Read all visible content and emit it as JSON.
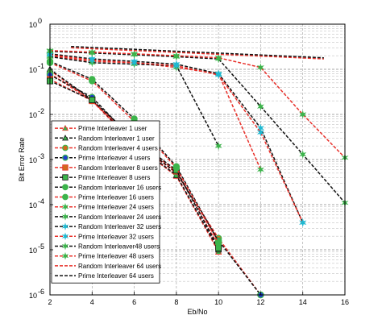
{
  "chart_data": {
    "type": "line",
    "xlabel": "Eb/No",
    "ylabel": "Bit Error Rate",
    "xlim": [
      2,
      16
    ],
    "ylim": [
      1e-06,
      1
    ],
    "yscale": "log",
    "grid": true,
    "legend_position": "lower-left",
    "x_ticks": [
      "2",
      "4",
      "6",
      "8",
      "10",
      "12",
      "14",
      "16"
    ],
    "y_ticks": [
      {
        "base": "10",
        "exp": "0"
      },
      {
        "base": "10",
        "exp": "-1"
      },
      {
        "base": "10",
        "exp": "-2"
      },
      {
        "base": "10",
        "exp": "-3"
      },
      {
        "base": "10",
        "exp": "-4"
      },
      {
        "base": "10",
        "exp": "-5"
      },
      {
        "base": "10",
        "exp": "-6"
      }
    ],
    "series": [
      {
        "name": "Prime Interleaver 1 user",
        "color": "#e8302a",
        "dash": "dashed",
        "marker": "triangle",
        "marker_color": "#3cb44b",
        "x": [
          2,
          4,
          6,
          8,
          10
        ],
        "y": [
          0.095,
          0.02,
          0.0022,
          0.00043,
          9e-06
        ]
      },
      {
        "name": "Random Interleaver 1 user",
        "color": "#111111",
        "dash": "dashed",
        "marker": "triangle",
        "marker_color": "#3cb44b",
        "x": [
          2,
          4,
          6,
          8,
          10
        ],
        "y": [
          0.1,
          0.021,
          0.0023,
          0.00045,
          1e-05
        ]
      },
      {
        "name": "Random Interleaver 4 users",
        "color": "#e8302a",
        "dash": "dashed",
        "marker": "circle",
        "marker_color": "#d2691e",
        "x": [
          2,
          4,
          6,
          8,
          10,
          12
        ],
        "y": [
          0.08,
          0.02,
          0.0025,
          0.0005,
          1.8e-05,
          1e-06
        ]
      },
      {
        "name": "Prime Interleaver 4 users",
        "color": "#111111",
        "dash": "dashed",
        "marker": "circle",
        "marker_color": "#1f3fcf",
        "x": [
          2,
          4,
          6,
          8,
          10,
          12
        ],
        "y": [
          0.075,
          0.024,
          0.0026,
          0.00052,
          1.6e-05,
          1e-06
        ]
      },
      {
        "name": "Random Interleaver  8 users",
        "color": "#e8302a",
        "dash": "dashed",
        "marker": "square",
        "marker_color": "#d2691e",
        "x": [
          2,
          4,
          6,
          8,
          10
        ],
        "y": [
          0.06,
          0.02,
          0.0028,
          0.00055,
          1.2e-05
        ]
      },
      {
        "name": "Prime Interleaver 8 users",
        "color": "#111111",
        "dash": "dashed",
        "marker": "square",
        "marker_color": "#3cb44b",
        "x": [
          2,
          4,
          6,
          8,
          10
        ],
        "y": [
          0.055,
          0.021,
          0.0029,
          0.00058,
          1.1e-05
        ]
      },
      {
        "name": "Random Interleaver 16 users",
        "color": "#111111",
        "dash": "dashed",
        "marker": "circle",
        "marker_color": "#3cb44b",
        "x": [
          2,
          4,
          6,
          8,
          10
        ],
        "y": [
          0.15,
          0.06,
          0.008,
          0.0007,
          1.5e-05
        ]
      },
      {
        "name": "Prime Interleaver 16 users",
        "color": "#e8302a",
        "dash": "dashed",
        "marker": "circle",
        "marker_color": "#3cb44b",
        "x": [
          2,
          4,
          6,
          8,
          10
        ],
        "y": [
          0.14,
          0.055,
          0.007,
          0.00065,
          1.4e-05
        ]
      },
      {
        "name": "Prime Interleaver 24 users",
        "color": "#e8302a",
        "dash": "dashed",
        "marker": "star",
        "marker_color": "#3cb44b",
        "x": [
          2,
          4,
          6,
          8,
          10,
          12
        ],
        "y": [
          0.2,
          0.15,
          0.14,
          0.11,
          0.08,
          0.0006
        ]
      },
      {
        "name": "Random Interleaver 24 users",
        "color": "#111111",
        "dash": "dashed",
        "marker": "star",
        "marker_color": "#3cb44b",
        "x": [
          2,
          4,
          6,
          8,
          10
        ],
        "y": [
          0.19,
          0.14,
          0.13,
          0.12,
          0.002
        ]
      },
      {
        "name": "Random Interleaver 32 users",
        "color": "#111111",
        "dash": "dashed",
        "marker": "star",
        "marker_color": "#1fb8d1",
        "x": [
          2,
          4,
          6,
          8,
          10,
          12,
          14
        ],
        "y": [
          0.22,
          0.17,
          0.15,
          0.13,
          0.08,
          0.005,
          4e-05
        ]
      },
      {
        "name": "Prime Interleaver 32 users",
        "color": "#e8302a",
        "dash": "dashed",
        "marker": "star",
        "marker_color": "#1fb8d1",
        "x": [
          2,
          4,
          6,
          8,
          10,
          12,
          14
        ],
        "y": [
          0.21,
          0.16,
          0.14,
          0.12,
          0.075,
          0.004,
          4e-05
        ]
      },
      {
        "name": "Random Interleaver48 users",
        "color": "#111111",
        "dash": "dashed",
        "marker": "star",
        "marker_color": "#3cb44b",
        "x": [
          2,
          4,
          6,
          8,
          10,
          12,
          14,
          16
        ],
        "y": [
          0.25,
          0.23,
          0.21,
          0.19,
          0.17,
          0.015,
          0.0013,
          0.00011
        ]
      },
      {
        "name": "Prime Interleaver 48 users",
        "color": "#e8302a",
        "dash": "dashed",
        "marker": "star",
        "marker_color": "#3cb44b",
        "x": [
          2,
          4,
          6,
          8,
          10,
          12,
          14,
          16
        ],
        "y": [
          0.26,
          0.24,
          0.22,
          0.2,
          0.18,
          0.11,
          0.01,
          0.0011
        ]
      },
      {
        "name": "Random Interleaver 64 users",
        "color": "#e8302a",
        "dash": "dashed",
        "marker": "none",
        "marker_color": "",
        "x": [
          3,
          15
        ],
        "y": [
          0.3,
          0.17
        ]
      },
      {
        "name": "Prime Interleaver 64 users",
        "color": "#111111",
        "dash": "dashed",
        "marker": "none",
        "marker_color": "",
        "x": [
          3,
          15
        ],
        "y": [
          0.32,
          0.18
        ]
      }
    ]
  }
}
